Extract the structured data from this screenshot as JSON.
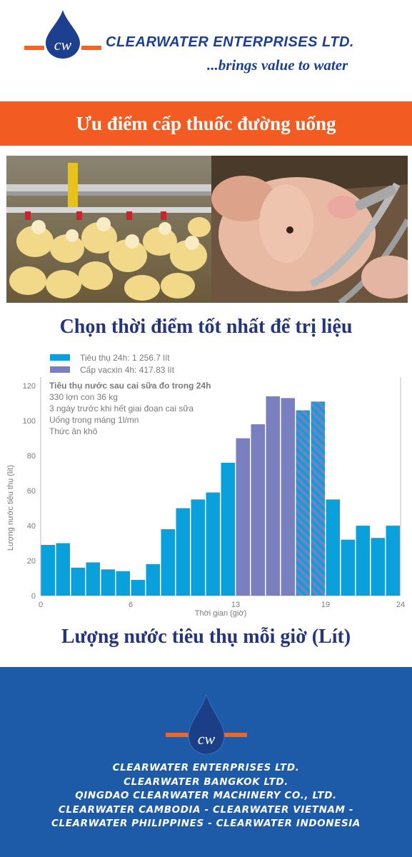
{
  "header": {
    "company_name": "CLEARWATER ENTERPRISES LTD.",
    "slogan": "...brings value to water",
    "logo_icon": "water-drop-logo-icon"
  },
  "banner": {
    "title": "Ưu điểm cấp thuốc đường uống"
  },
  "photos": {
    "left": "chicks-drinking-photo",
    "right": "pig-drinking-photo"
  },
  "section_title": "Chọn thời điểm tốt nhất để trị liệu",
  "chart_data": {
    "type": "bar",
    "xlabel": "Thời gian (giờ)",
    "ylabel": "Lượng nước tiêu thụ (lít)",
    "ylim": [
      0,
      125
    ],
    "xticks": [
      "0",
      "6",
      "13",
      "19",
      "24"
    ],
    "yticks": [
      "0",
      "20",
      "40",
      "60",
      "80",
      "100",
      "120"
    ],
    "legend": [
      {
        "name": "Tiêu thụ 24h: 1 256.7 lít",
        "color": "#0aa0dc"
      },
      {
        "name": "Cấp vacxin 4h: 417.83 lít",
        "color": "#7a7fc0"
      }
    ],
    "annotation": {
      "title": "Tiêu thụ nước sau cai sữa đo trong 24h",
      "lines": [
        "330 lợn con 36 kg",
        "3 ngày trước khi hết giai đoạn cai sữa",
        "Uống trong máng 1l/mn",
        "Thức ăn khô"
      ]
    },
    "hours": [
      0,
      1,
      2,
      3,
      4,
      5,
      6,
      7,
      8,
      9,
      10,
      11,
      12,
      13,
      14,
      15,
      16,
      17,
      18,
      19,
      20,
      21,
      22,
      23
    ],
    "values": [
      29,
      30,
      16,
      19,
      15,
      14,
      9,
      18,
      38,
      50,
      55,
      59,
      76,
      90,
      98,
      114,
      113,
      106,
      111,
      55,
      32,
      40,
      33,
      40
    ],
    "categories": [
      "base",
      "base",
      "base",
      "base",
      "base",
      "base",
      "base",
      "base",
      "base",
      "base",
      "base",
      "base",
      "base",
      "vaccine",
      "vaccine",
      "vaccine",
      "vaccine",
      "hatched",
      "hatched",
      "base",
      "base",
      "base",
      "base",
      "base"
    ],
    "colors": {
      "base": "#0aa0dc",
      "vaccine": "#7a7fc0",
      "hatch_a": "#0aa0dc",
      "hatch_b": "#7a7fc0"
    }
  },
  "bottom_title": "Lượng nước tiêu thụ mỗi giờ (Lít)",
  "footer": {
    "lines": [
      "CLEARWATER ENTERPRISES LTD.",
      "CLEARWATER BANGKOK LTD.",
      "QINGDAO CLEARWATER MACHINERY CO., LTD.",
      "CLEARWATER CAMBODIA - CLEARWATER VIETNAM -",
      "CLEARWATER PHILIPPINES -  CLEARWATER INDONESIA"
    ]
  },
  "colors": {
    "brand_blue": "#1c3f8f",
    "brand_orange": "#f26522",
    "footer_blue": "#1d5aa8"
  }
}
